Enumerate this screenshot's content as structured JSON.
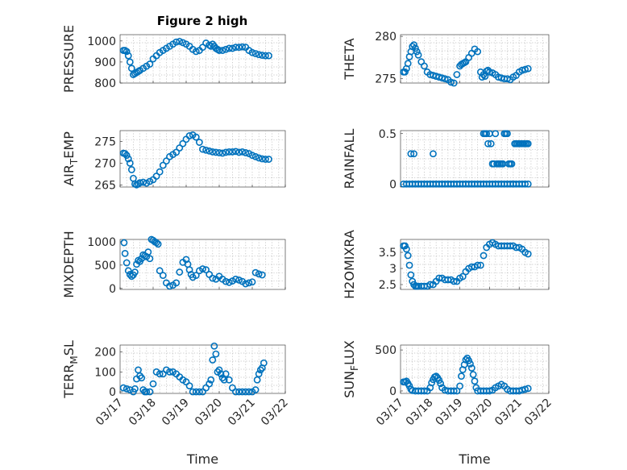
{
  "figure": {
    "title": "Figure 2 high",
    "marker_color": "#0072BD"
  },
  "chart_data": [
    {
      "type": "scatter",
      "title": "Figure 2 high",
      "ylabel": "PRESSURE",
      "ylabel_sub": null,
      "xlabel": "",
      "ylim": [
        800,
        1030
      ],
      "yticks": [
        800,
        900,
        1000
      ],
      "ytick_labels": [
        "800",
        "900",
        "1000"
      ],
      "xlim": [
        0,
        5
      ],
      "xticks": [
        0,
        1,
        2,
        3,
        4,
        5
      ],
      "xtick_labels": [
        "03/17",
        "03/18",
        "03/19",
        "03/20",
        "03/21",
        "03/22"
      ],
      "show_xticklabels": false,
      "grid": true,
      "x": [
        0.1,
        0.15,
        0.2,
        0.25,
        0.3,
        0.35,
        0.4,
        0.45,
        0.5,
        0.55,
        0.6,
        0.7,
        0.8,
        0.9,
        1,
        1.1,
        1.2,
        1.3,
        1.4,
        1.5,
        1.6,
        1.7,
        1.8,
        1.9,
        2,
        2.1,
        2.2,
        2.3,
        2.4,
        2.5,
        2.6,
        2.7,
        2.75,
        2.8,
        2.85,
        2.9,
        2.95,
        3,
        3.1,
        3.2,
        3.3,
        3.4,
        3.5,
        3.6,
        3.7,
        3.8,
        3.9,
        4,
        4.1,
        4.2,
        4.3,
        4.4,
        4.5
      ],
      "y": [
        955,
        955,
        950,
        930,
        900,
        870,
        840,
        845,
        850,
        855,
        860,
        870,
        880,
        890,
        915,
        930,
        945,
        955,
        965,
        975,
        985,
        995,
        998,
        992,
        985,
        975,
        960,
        950,
        955,
        970,
        990,
        980,
        975,
        985,
        975,
        965,
        960,
        955,
        955,
        960,
        965,
        965,
        970,
        970,
        972,
        970,
        955,
        945,
        940,
        935,
        932,
        930,
        930
      ]
    },
    {
      "type": "scatter",
      "title": "",
      "ylabel": "THETA",
      "ylabel_sub": null,
      "xlabel": "",
      "ylim": [
        274.5,
        280.2
      ],
      "yticks": [
        275,
        280
      ],
      "ytick_labels": [
        "275",
        "280"
      ],
      "xlim": [
        0,
        5
      ],
      "xticks": [
        0,
        1,
        2,
        3,
        4,
        5
      ],
      "xtick_labels": [
        "03/17",
        "03/18",
        "03/19",
        "03/20",
        "03/21",
        "03/22"
      ],
      "show_xticklabels": false,
      "grid": true,
      "x": [
        0.1,
        0.15,
        0.2,
        0.25,
        0.3,
        0.35,
        0.4,
        0.45,
        0.5,
        0.55,
        0.6,
        0.7,
        0.8,
        0.9,
        1,
        1.1,
        1.2,
        1.3,
        1.4,
        1.5,
        1.6,
        1.7,
        1.8,
        1.9,
        2,
        2.05,
        2.1,
        2.15,
        2.2,
        2.3,
        2.4,
        2.5,
        2.6,
        2.7,
        2.75,
        2.8,
        2.85,
        2.9,
        2.95,
        3,
        3.1,
        3.2,
        3.3,
        3.4,
        3.5,
        3.6,
        3.7,
        3.8,
        3.9,
        4,
        4.1,
        4.2,
        4.3
      ],
      "y": [
        275.8,
        275.8,
        276.2,
        276.8,
        277.6,
        278.2,
        278.8,
        279.0,
        278.6,
        278.2,
        277.8,
        277.0,
        276.5,
        275.8,
        275.5,
        275.4,
        275.3,
        275.2,
        275.1,
        275.0,
        274.9,
        274.6,
        274.5,
        275.5,
        276.5,
        276.7,
        276.8,
        276.9,
        277.0,
        277.5,
        278.0,
        278.5,
        278.2,
        275.8,
        275.2,
        275.5,
        275.3,
        275.9,
        276.0,
        275.8,
        275.7,
        275.5,
        275.2,
        275.1,
        275.0,
        275.0,
        274.9,
        275.2,
        275.4,
        275.8,
        276.0,
        276.1,
        276.2
      ]
    },
    {
      "type": "scatter",
      "title": "",
      "ylabel": "AIR",
      "ylabel_sub": "T",
      "ylabel_suffix": "EMP",
      "xlabel": "",
      "ylim": [
        264.5,
        277.5
      ],
      "yticks": [
        265,
        270,
        275
      ],
      "ytick_labels": [
        "265",
        "270",
        "275"
      ],
      "xlim": [
        0,
        5
      ],
      "xticks": [
        0,
        1,
        2,
        3,
        4,
        5
      ],
      "xtick_labels": [
        "03/17",
        "03/18",
        "03/19",
        "03/20",
        "03/21",
        "03/22"
      ],
      "show_xticklabels": false,
      "grid": true,
      "x": [
        0.1,
        0.15,
        0.2,
        0.25,
        0.3,
        0.35,
        0.4,
        0.45,
        0.5,
        0.55,
        0.6,
        0.7,
        0.8,
        0.9,
        1,
        1.1,
        1.2,
        1.3,
        1.4,
        1.5,
        1.6,
        1.7,
        1.8,
        1.9,
        2,
        2.1,
        2.2,
        2.3,
        2.4,
        2.5,
        2.6,
        2.7,
        2.8,
        2.9,
        3,
        3.1,
        3.2,
        3.3,
        3.4,
        3.5,
        3.6,
        3.7,
        3.8,
        3.9,
        4,
        4.1,
        4.2,
        4.3,
        4.4,
        4.5
      ],
      "y": [
        272.3,
        272.2,
        271.8,
        271.0,
        270.0,
        268.5,
        266.5,
        265.2,
        265.0,
        265.2,
        265.5,
        265.6,
        265.4,
        265.8,
        266.2,
        267.0,
        268.0,
        269.5,
        270.5,
        271.5,
        272.0,
        272.5,
        273.5,
        274.5,
        275.5,
        276.3,
        276.5,
        276.0,
        274.8,
        273.2,
        273.0,
        272.8,
        272.6,
        272.5,
        272.4,
        272.3,
        272.5,
        272.6,
        272.6,
        272.7,
        272.5,
        272.6,
        272.4,
        272.2,
        271.8,
        271.5,
        271.2,
        271.0,
        270.9,
        270.9
      ]
    },
    {
      "type": "scatter",
      "title": "",
      "ylabel": "RAINFALL",
      "ylabel_sub": null,
      "xlabel": "",
      "ylim": [
        -0.03,
        0.53
      ],
      "yticks": [
        0,
        0.5
      ],
      "ytick_labels": [
        "0",
        "0.5"
      ],
      "xlim": [
        0,
        5
      ],
      "xticks": [
        0,
        1,
        2,
        3,
        4,
        5
      ],
      "xtick_labels": [
        "03/17",
        "03/18",
        "03/19",
        "03/20",
        "03/21",
        "03/22"
      ],
      "show_xticklabels": false,
      "grid": true,
      "x": [
        0.1,
        0.2,
        0.3,
        0.4,
        0.5,
        0.6,
        0.7,
        0.8,
        0.9,
        1,
        1.1,
        1.2,
        1.3,
        1.4,
        1.5,
        1.6,
        1.7,
        1.8,
        1.9,
        2,
        2.1,
        2.2,
        2.3,
        2.4,
        2.5,
        2.6,
        2.7,
        2.8,
        2.9,
        3,
        3.1,
        3.2,
        3.3,
        3.4,
        3.5,
        3.6,
        3.7,
        3.8,
        3.9,
        4,
        4.1,
        4.2,
        4.3,
        0.35,
        0.45,
        1.1,
        2.8,
        2.85,
        2.9,
        2.95,
        3.0,
        3.05,
        3.1,
        3.15,
        3.2,
        3.25,
        3.3,
        3.35,
        3.4,
        3.45,
        3.5,
        3.55,
        3.6,
        3.65,
        3.7,
        3.75,
        3.8,
        3.85,
        3.9,
        3.95,
        4.0,
        4.05,
        4.1,
        4.15,
        4.2,
        4.25,
        4.3
      ],
      "y": [
        0,
        0,
        0,
        0,
        0,
        0,
        0,
        0,
        0,
        0,
        0,
        0,
        0,
        0,
        0,
        0,
        0,
        0,
        0,
        0,
        0,
        0,
        0,
        0,
        0,
        0,
        0,
        0,
        0,
        0,
        0,
        0,
        0,
        0,
        0,
        0,
        0,
        0,
        0,
        0,
        0,
        0,
        0,
        0.3,
        0.3,
        0.3,
        0.5,
        0.5,
        0.5,
        0.4,
        0.5,
        0.4,
        0.2,
        0.2,
        0.5,
        0.2,
        0.2,
        0.2,
        0.2,
        0.2,
        0.5,
        0.5,
        0.5,
        0.2,
        0.2,
        0.2,
        0,
        0.4,
        0.4,
        0.4,
        0.4,
        0.4,
        0.4,
        0.4,
        0.4,
        0.4,
        0.4
      ]
    },
    {
      "type": "scatter",
      "title": "",
      "ylabel": "MIXDEPTH",
      "ylabel_sub": null,
      "xlabel": "",
      "ylim": [
        -20,
        1050
      ],
      "yticks": [
        0,
        500,
        1000
      ],
      "ytick_labels": [
        "0",
        "500",
        "1000"
      ],
      "xlim": [
        0,
        5
      ],
      "xticks": [
        0,
        1,
        2,
        3,
        4,
        5
      ],
      "xtick_labels": [
        "03/17",
        "03/18",
        "03/19",
        "03/20",
        "03/21",
        "03/22"
      ],
      "show_xticklabels": false,
      "grid": true,
      "x": [
        0.12,
        0.15,
        0.2,
        0.25,
        0.3,
        0.35,
        0.4,
        0.45,
        0.5,
        0.55,
        0.6,
        0.65,
        0.7,
        0.75,
        0.8,
        0.85,
        0.9,
        0.95,
        1,
        1.05,
        1.1,
        1.15,
        1.2,
        1.3,
        1.4,
        1.5,
        1.6,
        1.7,
        1.8,
        1.9,
        2,
        2.05,
        2.1,
        2.15,
        2.2,
        2.3,
        2.4,
        2.5,
        2.6,
        2.7,
        2.8,
        2.9,
        3,
        3.1,
        3.2,
        3.3,
        3.4,
        3.5,
        3.6,
        3.7,
        3.8,
        3.9,
        4,
        4.1,
        4.2,
        4.3
      ],
      "y": [
        980,
        750,
        550,
        380,
        300,
        260,
        290,
        350,
        520,
        600,
        580,
        640,
        720,
        700,
        680,
        780,
        640,
        1050,
        1030,
        1000,
        980,
        950,
        380,
        280,
        120,
        50,
        70,
        120,
        350,
        560,
        620,
        520,
        400,
        300,
        240,
        280,
        380,
        420,
        400,
        300,
        220,
        200,
        260,
        200,
        150,
        130,
        160,
        200,
        180,
        150,
        100,
        120,
        140,
        340,
        310,
        290
      ]
    },
    {
      "type": "scatter",
      "title": "",
      "ylabel": "H2OMIXRA",
      "ylabel_sub": null,
      "xlabel": "",
      "ylim": [
        2.35,
        3.9
      ],
      "yticks": [
        2.5,
        3,
        3.5
      ],
      "ytick_labels": [
        "2.5",
        "3",
        "3.5"
      ],
      "xlim": [
        0,
        5
      ],
      "xticks": [
        0,
        1,
        2,
        3,
        4,
        5
      ],
      "xtick_labels": [
        "03/17",
        "03/18",
        "03/19",
        "03/20",
        "03/21",
        "03/22"
      ],
      "show_xticklabels": false,
      "grid": true,
      "x": [
        0.1,
        0.15,
        0.2,
        0.25,
        0.3,
        0.35,
        0.4,
        0.45,
        0.5,
        0.55,
        0.6,
        0.7,
        0.8,
        0.9,
        1,
        1.1,
        1.2,
        1.3,
        1.4,
        1.5,
        1.6,
        1.7,
        1.8,
        1.9,
        2,
        2.1,
        2.2,
        2.3,
        2.4,
        2.5,
        2.6,
        2.7,
        2.8,
        2.9,
        3,
        3.1,
        3.2,
        3.3,
        3.4,
        3.5,
        3.6,
        3.7,
        3.8,
        3.9,
        4,
        4.1,
        4.2,
        4.3
      ],
      "y": [
        3.7,
        3.7,
        3.6,
        3.4,
        3.1,
        2.8,
        2.6,
        2.5,
        2.45,
        2.45,
        2.45,
        2.45,
        2.45,
        2.45,
        2.5,
        2.5,
        2.6,
        2.7,
        2.7,
        2.65,
        2.65,
        2.65,
        2.6,
        2.6,
        2.7,
        2.75,
        2.9,
        3.0,
        3.05,
        3.05,
        3.1,
        3.1,
        3.4,
        3.65,
        3.75,
        3.8,
        3.75,
        3.7,
        3.7,
        3.7,
        3.7,
        3.7,
        3.7,
        3.65,
        3.65,
        3.6,
        3.5,
        3.45
      ]
    },
    {
      "type": "scatter",
      "title": "",
      "ylabel": "TERR",
      "ylabel_sub": "M",
      "ylabel_suffix": "SL",
      "xlabel": "Time",
      "ylim": [
        -8,
        235
      ],
      "yticks": [
        0,
        100,
        200
      ],
      "ytick_labels": [
        "0",
        "100",
        "200"
      ],
      "xlim": [
        0,
        5
      ],
      "xticks": [
        0,
        1,
        2,
        3,
        4,
        5
      ],
      "xtick_labels": [
        "03/17",
        "03/18",
        "03/19",
        "03/20",
        "03/21",
        "03/22"
      ],
      "show_xticklabels": true,
      "grid": true,
      "x": [
        0.1,
        0.2,
        0.3,
        0.4,
        0.45,
        0.5,
        0.55,
        0.6,
        0.65,
        0.7,
        0.75,
        0.8,
        0.9,
        1,
        1.1,
        1.2,
        1.3,
        1.4,
        1.5,
        1.6,
        1.7,
        1.8,
        1.9,
        2,
        2.1,
        2.2,
        2.3,
        2.4,
        2.5,
        2.6,
        2.7,
        2.75,
        2.8,
        2.85,
        2.9,
        2.95,
        3,
        3.05,
        3.1,
        3.15,
        3.2,
        3.3,
        3.4,
        3.5,
        3.6,
        3.7,
        3.8,
        3.9,
        4,
        4.1,
        4.15,
        4.2,
        4.25,
        4.3,
        4.35
      ],
      "y": [
        20,
        15,
        10,
        0,
        15,
        65,
        110,
        80,
        70,
        10,
        0,
        0,
        0,
        40,
        100,
        90,
        90,
        110,
        100,
        100,
        90,
        75,
        60,
        50,
        30,
        0,
        0,
        0,
        0,
        20,
        40,
        60,
        160,
        230,
        190,
        100,
        110,
        90,
        70,
        60,
        90,
        60,
        20,
        0,
        0,
        0,
        0,
        0,
        0,
        10,
        60,
        90,
        110,
        120,
        145
      ]
    },
    {
      "type": "scatter",
      "title": "",
      "ylabel": "SUN",
      "ylabel_sub": "F",
      "ylabel_suffix": "LUX",
      "xlabel": "Time",
      "ylim": [
        -30,
        560
      ],
      "yticks": [
        0,
        500
      ],
      "ytick_labels": [
        "0",
        "500"
      ],
      "xlim": [
        0,
        5
      ],
      "xticks": [
        0,
        1,
        2,
        3,
        4,
        5
      ],
      "xtick_labels": [
        "03/17",
        "03/18",
        "03/19",
        "03/20",
        "03/21",
        "03/22"
      ],
      "show_xticklabels": true,
      "grid": true,
      "x": [
        0.1,
        0.15,
        0.2,
        0.25,
        0.3,
        0.35,
        0.4,
        0.5,
        0.6,
        0.7,
        0.8,
        0.9,
        1,
        1.05,
        1.1,
        1.15,
        1.2,
        1.25,
        1.3,
        1.35,
        1.4,
        1.5,
        1.6,
        1.7,
        1.8,
        1.9,
        2,
        2.05,
        2.1,
        2.15,
        2.2,
        2.25,
        2.3,
        2.35,
        2.4,
        2.45,
        2.5,
        2.55,
        2.6,
        2.7,
        2.8,
        2.9,
        3,
        3.1,
        3.2,
        3.3,
        3.4,
        3.5,
        3.6,
        3.7,
        3.8,
        3.9,
        4,
        4.1,
        4.2,
        4.3
      ],
      "y": [
        110,
        110,
        120,
        90,
        60,
        20,
        5,
        0,
        0,
        0,
        0,
        0,
        40,
        100,
        140,
        170,
        180,
        160,
        130,
        90,
        40,
        10,
        0,
        0,
        0,
        0,
        60,
        180,
        260,
        320,
        380,
        400,
        370,
        330,
        280,
        200,
        120,
        40,
        0,
        0,
        0,
        0,
        0,
        10,
        40,
        60,
        80,
        60,
        20,
        0,
        0,
        0,
        0,
        10,
        20,
        30
      ]
    }
  ]
}
